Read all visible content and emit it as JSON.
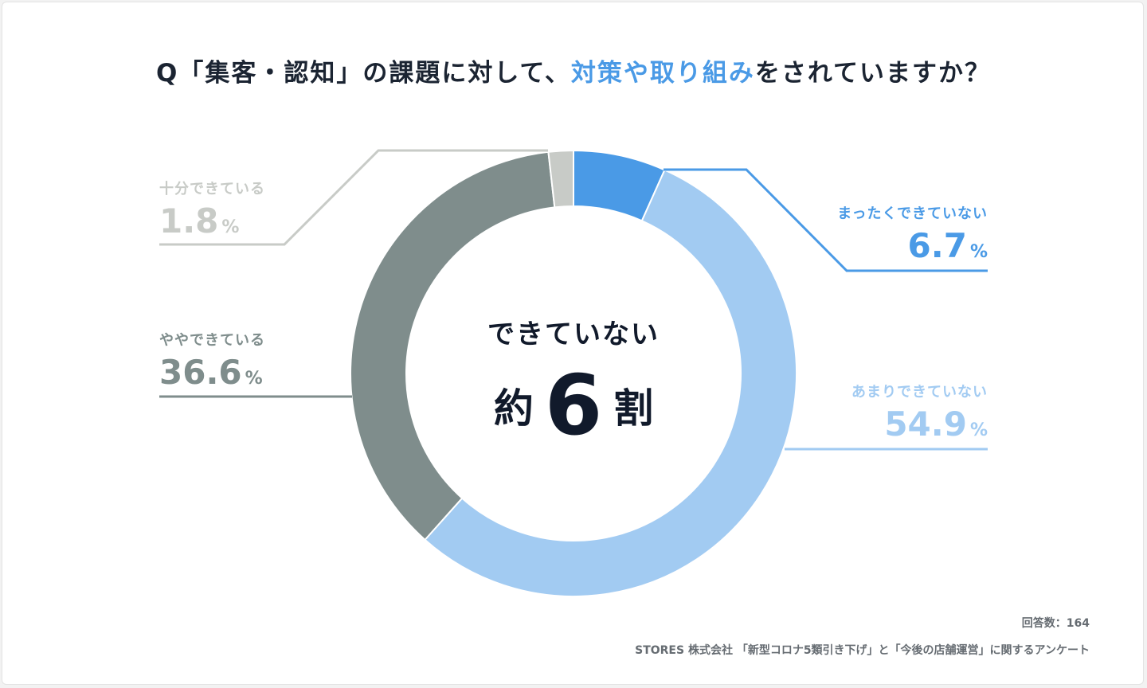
{
  "title": {
    "prefix": "Q「集客・認知」の課題に対して、",
    "highlight": "対策や取り組み",
    "suffix": "をされていますか？"
  },
  "center": {
    "top": "できていない",
    "word1": "約",
    "number": "6",
    "word2": "割"
  },
  "chart_data": {
    "type": "pie",
    "title": "Q「集客・認知」の課題に対して、対策や取り組みをされていますか？",
    "unit": "%",
    "slices": [
      {
        "label": "まったくできていない",
        "value": 6.7,
        "color": "#4a9ae6"
      },
      {
        "label": "あまりできていない",
        "value": 54.9,
        "color": "#a2cbf2"
      },
      {
        "label": "ややできている",
        "value": 36.6,
        "color": "#7f8d8c"
      },
      {
        "label": "十分できている",
        "value": 1.8,
        "color": "#c8cbc7"
      }
    ]
  },
  "labels": [
    {
      "category": "まったくできていない",
      "value": "6.7",
      "unit": "%"
    },
    {
      "category": "あまりできていない",
      "value": "54.9",
      "unit": "%"
    },
    {
      "category": "ややできている",
      "value": "36.6",
      "unit": "%"
    },
    {
      "category": "十分できている",
      "value": "1.8",
      "unit": "%"
    }
  ],
  "footer": {
    "respondents": "回答数：164",
    "source": "STORES 株式会社 「新型コロナ5類引き下げ」と「今後の店舗運営」に関するアンケート"
  }
}
